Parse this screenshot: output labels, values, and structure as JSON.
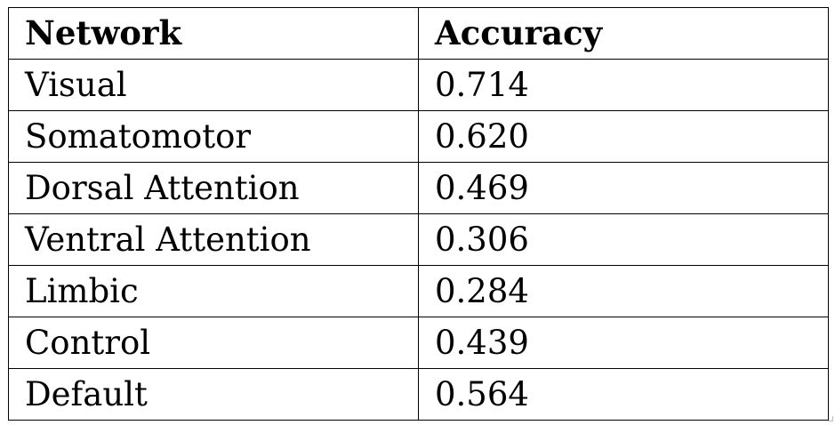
{
  "table": {
    "headers": [
      "Network",
      "Accuracy"
    ],
    "rows": [
      [
        "Visual",
        "0.714"
      ],
      [
        "Somatomotor",
        "0.620"
      ],
      [
        "Dorsal Attention",
        "0.469"
      ],
      [
        "Ventral Attention",
        "0.306"
      ],
      [
        "Limbic",
        "0.284"
      ],
      [
        "Control",
        "0.439"
      ],
      [
        "Default",
        "0.564"
      ]
    ]
  }
}
